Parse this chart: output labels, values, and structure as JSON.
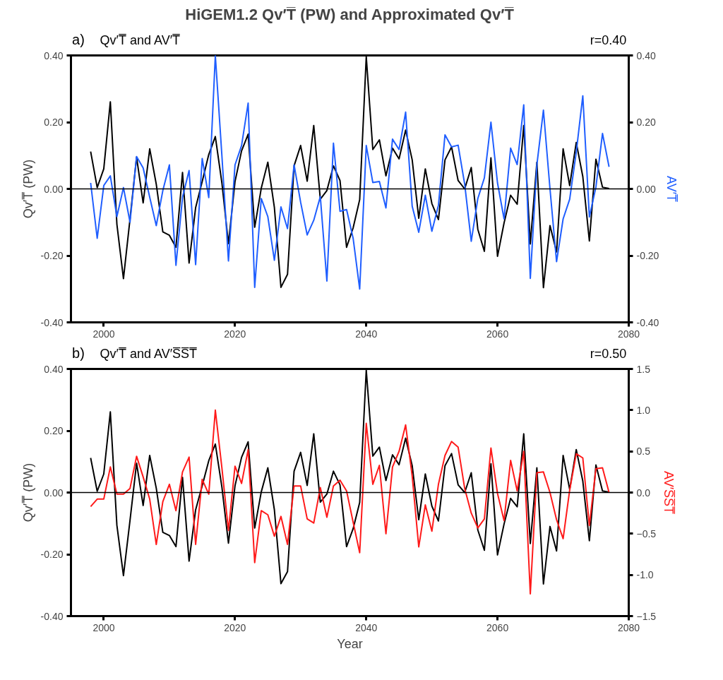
{
  "chart_data": [
    {
      "type": "line",
      "title": "HiGEM1.2 Qv′T̅ (PW) and Approximated Qv′T̅",
      "subtitle": "Qv′T̅ and AV′T̅",
      "annotations": [
        "a)",
        "r=0.40"
      ],
      "ylabel": "Qv′T̅ (PW)",
      "y2label": "AV′T̅",
      "legend": false,
      "xlim": [
        1995,
        2080
      ],
      "xticks": [
        2000,
        2020,
        2040,
        2060,
        2080
      ],
      "ylim": [
        -0.4,
        0.4
      ],
      "yticks": [
        {
          "value": -0.4,
          "label": "-0.40"
        },
        {
          "value": -0.2,
          "label": "-0.20"
        },
        {
          "value": 0,
          "label": "0.00"
        },
        {
          "value": 0.2,
          "label": "0.20"
        },
        {
          "value": 0.4,
          "label": "0.40"
        }
      ],
      "y2lim": [
        -0.4,
        0.4
      ],
      "y2ticks": [
        {
          "value": -0.4,
          "label": "-0.40"
        },
        {
          "value": -0.2,
          "label": "-0.20"
        },
        {
          "value": 0,
          "label": "0.00"
        },
        {
          "value": 0.2,
          "label": "0.20"
        },
        {
          "value": 0.4,
          "label": "0.40"
        }
      ],
      "x": [
        1998,
        1999,
        2000,
        2001,
        2002,
        2003,
        2004,
        2005,
        2006,
        2007,
        2008,
        2009,
        2010,
        2011,
        2012,
        2013,
        2014,
        2015,
        2016,
        2017,
        2018,
        2019,
        2020,
        2021,
        2022,
        2023,
        2024,
        2025,
        2026,
        2027,
        2028,
        2029,
        2030,
        2031,
        2032,
        2033,
        2034,
        2035,
        2036,
        2037,
        2038,
        2039,
        2040,
        2041,
        2042,
        2043,
        2044,
        2045,
        2046,
        2047,
        2048,
        2049,
        2050,
        2051,
        2052,
        2053,
        2054,
        2055,
        2056,
        2057,
        2058,
        2059,
        2060,
        2061,
        2062,
        2063,
        2064,
        2065,
        2066,
        2067,
        2068,
        2069,
        2070,
        2071,
        2072,
        2073,
        2074,
        2075,
        2076,
        2077
      ],
      "ref_lines": [
        {
          "axis": "y",
          "value": 0,
          "color": "#000000"
        }
      ],
      "grid": false,
      "series": [
        {
          "color": "#000000",
          "values": [
            0.112,
            0.004,
            0.06,
            0.261,
            -0.106,
            -0.269,
            -0.09,
            0.095,
            -0.042,
            0.12,
            0.014,
            -0.129,
            -0.139,
            -0.175,
            0.049,
            -0.222,
            -0.056,
            0.022,
            0.103,
            0.157,
            0.018,
            -0.164,
            0.022,
            0.114,
            0.164,
            -0.115,
            0.002,
            0.08,
            -0.056,
            -0.295,
            -0.256,
            0.069,
            0.13,
            0.023,
            0.19,
            -0.031,
            -0.005,
            0.069,
            0.025,
            -0.175,
            -0.117,
            -0.032,
            0.396,
            0.118,
            0.147,
            0.039,
            0.122,
            0.09,
            0.176,
            0.087,
            -0.088,
            0.06,
            -0.044,
            -0.092,
            0.087,
            0.126,
            0.025,
            0.0,
            0.064,
            -0.121,
            -0.187,
            0.093,
            -0.202,
            -0.102,
            -0.019,
            -0.046,
            0.19,
            -0.165,
            0.08,
            -0.296,
            -0.11,
            -0.189,
            0.12,
            0.01,
            0.139,
            0.037,
            -0.156,
            0.089,
            0.005,
            0.001
          ]
        },
        {
          "color": "#1f5eff",
          "axis": "y2",
          "values": [
            0.018,
            -0.148,
            0.01,
            0.039,
            -0.083,
            0.004,
            -0.1,
            0.097,
            0.063,
            -0.025,
            -0.11,
            -0.005,
            0.072,
            -0.229,
            -0.025,
            0.055,
            -0.227,
            0.091,
            -0.026,
            0.4,
            0.1,
            -0.216,
            0.072,
            0.13,
            0.257,
            -0.295,
            -0.029,
            -0.083,
            -0.214,
            -0.054,
            -0.119,
            0.072,
            -0.04,
            -0.138,
            -0.094,
            -0.023,
            -0.276,
            0.137,
            -0.067,
            -0.062,
            -0.148,
            -0.3,
            0.13,
            0.019,
            0.022,
            -0.057,
            0.149,
            0.118,
            0.23,
            -0.052,
            -0.13,
            -0.019,
            -0.127,
            -0.049,
            0.162,
            0.126,
            0.131,
            0.014,
            -0.157,
            -0.029,
            0.033,
            0.2,
            0.018,
            -0.09,
            0.122,
            0.073,
            0.252,
            -0.268,
            0.072,
            0.236,
            0.0,
            -0.218,
            -0.09,
            -0.031,
            0.11,
            0.279,
            -0.084,
            0.006,
            0.166,
            0.066
          ]
        }
      ]
    },
    {
      "type": "line",
      "subtitle": "Qv′T̅ and AV′S̅S̅T̅",
      "annotations": [
        "b)",
        "r=0.50"
      ],
      "xlabel": "Year",
      "ylabel": "Qv′T̅ (PW)",
      "y2label": "AV′S̅S̅T̅",
      "legend": false,
      "xlim": [
        1995,
        2080
      ],
      "xticks": [
        2000,
        2020,
        2040,
        2060,
        2080
      ],
      "ylim": [
        -0.4,
        0.4
      ],
      "yticks": [
        {
          "value": -0.4,
          "label": "-0.40"
        },
        {
          "value": -0.2,
          "label": "-0.20"
        },
        {
          "value": 0,
          "label": "0.00"
        },
        {
          "value": 0.2,
          "label": "0.20"
        },
        {
          "value": 0.4,
          "label": "0.40"
        }
      ],
      "y2lim": [
        -1.5,
        1.5
      ],
      "y2ticks": [
        -1.5,
        {
          "value": -1,
          "label": "-1.0"
        },
        -0.5,
        {
          "value": 0,
          "label": "0.0"
        },
        0.5,
        {
          "value": 1,
          "label": "1.0"
        },
        1.5
      ],
      "x": [
        1998,
        1999,
        2000,
        2001,
        2002,
        2003,
        2004,
        2005,
        2006,
        2007,
        2008,
        2009,
        2010,
        2011,
        2012,
        2013,
        2014,
        2015,
        2016,
        2017,
        2018,
        2019,
        2020,
        2021,
        2022,
        2023,
        2024,
        2025,
        2026,
        2027,
        2028,
        2029,
        2030,
        2031,
        2032,
        2033,
        2034,
        2035,
        2036,
        2037,
        2038,
        2039,
        2040,
        2041,
        2042,
        2043,
        2044,
        2045,
        2046,
        2047,
        2048,
        2049,
        2050,
        2051,
        2052,
        2053,
        2054,
        2055,
        2056,
        2057,
        2058,
        2059,
        2060,
        2061,
        2062,
        2063,
        2064,
        2065,
        2066,
        2067,
        2068,
        2069,
        2070,
        2071,
        2072,
        2073,
        2074,
        2075,
        2076,
        2077
      ],
      "ref_lines": [
        {
          "axis": "y",
          "value": 0,
          "color": "#000000"
        }
      ],
      "grid": false,
      "series": [
        {
          "color": "#000000",
          "values": [
            0.112,
            0.004,
            0.06,
            0.261,
            -0.106,
            -0.269,
            -0.09,
            0.095,
            -0.042,
            0.12,
            0.014,
            -0.129,
            -0.139,
            -0.175,
            0.049,
            -0.222,
            -0.056,
            0.022,
            0.103,
            0.157,
            0.018,
            -0.164,
            0.022,
            0.114,
            0.164,
            -0.115,
            0.002,
            0.08,
            -0.056,
            -0.295,
            -0.256,
            0.069,
            0.13,
            0.023,
            0.19,
            -0.031,
            -0.005,
            0.069,
            0.025,
            -0.175,
            -0.117,
            -0.032,
            0.396,
            0.118,
            0.147,
            0.039,
            0.122,
            0.09,
            0.176,
            0.087,
            -0.088,
            0.06,
            -0.044,
            -0.092,
            0.087,
            0.126,
            0.025,
            0.0,
            0.064,
            -0.121,
            -0.187,
            0.093,
            -0.202,
            -0.102,
            -0.019,
            -0.046,
            0.19,
            -0.165,
            0.08,
            -0.296,
            -0.11,
            -0.189,
            0.12,
            0.01,
            0.139,
            0.037,
            -0.156,
            0.089,
            0.005,
            0.001
          ]
        },
        {
          "color": "#ff1a1a",
          "axis": "y2",
          "values": [
            -0.17,
            -0.08,
            -0.08,
            0.31,
            -0.02,
            -0.02,
            0.05,
            0.44,
            0.19,
            -0.08,
            -0.63,
            -0.11,
            0.1,
            -0.22,
            0.25,
            0.43,
            -0.63,
            0.16,
            -0.02,
            1.0,
            0.3,
            -0.46,
            0.32,
            0.11,
            0.52,
            -0.85,
            -0.22,
            -0.27,
            -0.53,
            -0.29,
            -0.63,
            0.08,
            0.08,
            -0.32,
            -0.37,
            0.06,
            -0.3,
            0.08,
            0.15,
            0.02,
            -0.36,
            -0.73,
            0.84,
            0.1,
            0.33,
            -0.5,
            0.31,
            0.5,
            0.82,
            0.2,
            -0.66,
            -0.15,
            -0.47,
            0.1,
            0.45,
            0.62,
            0.55,
            0.05,
            -0.25,
            -0.43,
            -0.32,
            0.54,
            -0.01,
            -0.34,
            0.39,
            0.02,
            0.5,
            -1.23,
            0.24,
            0.25,
            0.0,
            -0.33,
            -0.56,
            0.03,
            0.47,
            0.42,
            -0.4,
            0.29,
            0.3,
            0.0
          ]
        }
      ]
    }
  ]
}
